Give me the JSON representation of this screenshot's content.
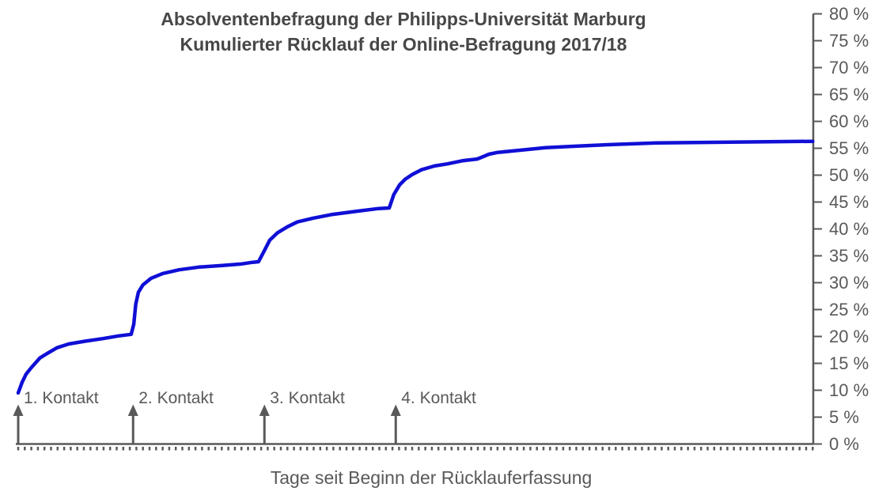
{
  "title": {
    "line1": "Absolventenbefragung der Philipps-Universität Marburg",
    "line2": "Kumulierter Rücklauf der Online-Befragung 2017/18"
  },
  "x_axis": {
    "label": "Tage seit Beginn der Rücklauferfassung"
  },
  "colors": {
    "line": "#0f0fd6",
    "axis": "#595959",
    "title_text": "#474747",
    "label_text": "#595959",
    "background": "#ffffff"
  },
  "chart_data": {
    "type": "line",
    "title": "Absolventenbefragung der Philipps-Universität Marburg",
    "subtitle": "Kumulierter Rücklauf der Online-Befragung 2017/18",
    "xlabel": "Tage seit Beginn der Rücklauferfassung",
    "ylabel": "",
    "xlim_days": [
      0,
      121
    ],
    "ylim": [
      0,
      80
    ],
    "y_tick_step_pct": 5,
    "y_tick_labels": [
      "0 %",
      "5 %",
      "10 %",
      "15 %",
      "20 %",
      "25 %",
      "30 %",
      "35 %",
      "40 %",
      "45 %",
      "50 %",
      "55 %",
      "60 %",
      "65 %",
      "70 %",
      "75 %",
      "80 %"
    ],
    "x_minor_tick_step_days": 1,
    "x_tick_labels_shown": false,
    "grid": false,
    "legend_position": "none",
    "series": [
      {
        "name": "Kumulierter Rücklauf",
        "points_day_pct": [
          [
            0,
            9.5
          ],
          [
            0.6,
            11.5
          ],
          [
            1.2,
            13.0
          ],
          [
            2.0,
            14.2
          ],
          [
            3.3,
            16.0
          ],
          [
            4.5,
            16.9
          ],
          [
            5.9,
            17.9
          ],
          [
            7.7,
            18.6
          ],
          [
            10.1,
            19.1
          ],
          [
            12.9,
            19.6
          ],
          [
            15.3,
            20.1
          ],
          [
            17.2,
            20.4
          ],
          [
            17.6,
            22.3
          ],
          [
            17.9,
            26.0
          ],
          [
            18.3,
            28.2
          ],
          [
            19.0,
            29.6
          ],
          [
            20.2,
            30.8
          ],
          [
            22.0,
            31.7
          ],
          [
            24.5,
            32.4
          ],
          [
            27.5,
            32.9
          ],
          [
            31.1,
            33.2
          ],
          [
            34.1,
            33.5
          ],
          [
            35.7,
            33.8
          ],
          [
            36.6,
            33.9
          ],
          [
            37.5,
            36.0
          ],
          [
            38.3,
            37.9
          ],
          [
            39.5,
            39.3
          ],
          [
            41.0,
            40.4
          ],
          [
            42.5,
            41.3
          ],
          [
            44.9,
            42.0
          ],
          [
            47.9,
            42.7
          ],
          [
            51.6,
            43.3
          ],
          [
            54.9,
            43.8
          ],
          [
            56.5,
            43.9
          ],
          [
            57.2,
            46.4
          ],
          [
            58.1,
            48.2
          ],
          [
            58.9,
            49.2
          ],
          [
            60.0,
            50.1
          ],
          [
            61.4,
            51.0
          ],
          [
            63.4,
            51.7
          ],
          [
            65.4,
            52.1
          ],
          [
            67.8,
            52.7
          ],
          [
            69.9,
            53.0
          ],
          [
            70.5,
            53.3
          ],
          [
            71.7,
            53.9
          ],
          [
            72.9,
            54.2
          ],
          [
            76.1,
            54.6
          ],
          [
            80.3,
            55.1
          ],
          [
            85.2,
            55.4
          ],
          [
            90.6,
            55.7
          ],
          [
            97.2,
            56.0
          ],
          [
            105.7,
            56.1
          ],
          [
            114.1,
            56.2
          ],
          [
            121,
            56.3
          ]
        ]
      }
    ],
    "annotations": [
      {
        "label": "1. Kontakt",
        "day": 0
      },
      {
        "label": "2. Kontakt",
        "day": 17.5
      },
      {
        "label": "3. Kontakt",
        "day": 37.5
      },
      {
        "label": "4. Kontakt",
        "day": 57.5
      }
    ]
  }
}
